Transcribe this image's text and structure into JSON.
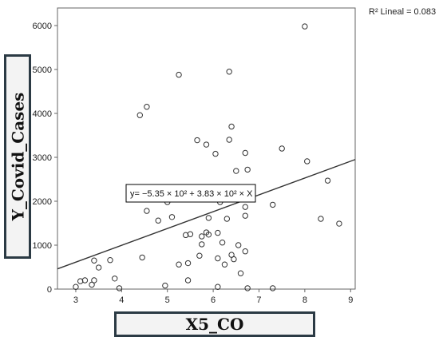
{
  "chart_data": {
    "type": "scatter",
    "xlabel": "X5_CO",
    "ylabel": "Y_Covid_Cases",
    "xlim": [
      2.6,
      9.1
    ],
    "ylim": [
      0,
      6400
    ],
    "xticks": [
      "3",
      "4",
      "5",
      "6",
      "7",
      "8",
      "9"
    ],
    "yticks": [
      "0",
      "1000",
      "2000",
      "3000",
      "4000",
      "5000",
      "6000"
    ],
    "grid": false,
    "r2_label": "R² Lineal = 0.083",
    "fit_equation": "y= −5.35 × 10² + 3.83 × 10² × X",
    "fit_line": {
      "intercept": -535,
      "slope": 383
    },
    "points": [
      {
        "x": 3.0,
        "y": 50
      },
      {
        "x": 3.1,
        "y": 180
      },
      {
        "x": 3.2,
        "y": 200
      },
      {
        "x": 3.35,
        "y": 100
      },
      {
        "x": 3.4,
        "y": 200
      },
      {
        "x": 3.4,
        "y": 650
      },
      {
        "x": 3.5,
        "y": 490
      },
      {
        "x": 3.75,
        "y": 660
      },
      {
        "x": 3.85,
        "y": 240
      },
      {
        "x": 3.95,
        "y": 20
      },
      {
        "x": 4.4,
        "y": 3960
      },
      {
        "x": 4.45,
        "y": 720
      },
      {
        "x": 4.55,
        "y": 4150
      },
      {
        "x": 4.55,
        "y": 1780
      },
      {
        "x": 4.8,
        "y": 1560
      },
      {
        "x": 4.95,
        "y": 80
      },
      {
        "x": 5.0,
        "y": 1980
      },
      {
        "x": 5.1,
        "y": 1640
      },
      {
        "x": 5.25,
        "y": 4880
      },
      {
        "x": 5.25,
        "y": 560
      },
      {
        "x": 5.4,
        "y": 1230
      },
      {
        "x": 5.45,
        "y": 590
      },
      {
        "x": 5.45,
        "y": 200
      },
      {
        "x": 5.5,
        "y": 1250
      },
      {
        "x": 5.65,
        "y": 3390
      },
      {
        "x": 5.7,
        "y": 760
      },
      {
        "x": 5.75,
        "y": 1200
      },
      {
        "x": 5.75,
        "y": 1020
      },
      {
        "x": 5.85,
        "y": 3290
      },
      {
        "x": 5.85,
        "y": 1290
      },
      {
        "x": 5.9,
        "y": 1620
      },
      {
        "x": 5.9,
        "y": 1240
      },
      {
        "x": 6.05,
        "y": 3080
      },
      {
        "x": 6.1,
        "y": 1280
      },
      {
        "x": 6.1,
        "y": 700
      },
      {
        "x": 6.1,
        "y": 50
      },
      {
        "x": 6.15,
        "y": 1980
      },
      {
        "x": 6.2,
        "y": 1060
      },
      {
        "x": 6.25,
        "y": 560
      },
      {
        "x": 6.3,
        "y": 1600
      },
      {
        "x": 6.35,
        "y": 4950
      },
      {
        "x": 6.35,
        "y": 3400
      },
      {
        "x": 6.4,
        "y": 3700
      },
      {
        "x": 6.4,
        "y": 780
      },
      {
        "x": 6.45,
        "y": 680
      },
      {
        "x": 6.5,
        "y": 2690
      },
      {
        "x": 6.55,
        "y": 1000
      },
      {
        "x": 6.6,
        "y": 360
      },
      {
        "x": 6.7,
        "y": 3100
      },
      {
        "x": 6.7,
        "y": 1870
      },
      {
        "x": 6.7,
        "y": 860
      },
      {
        "x": 6.7,
        "y": 1670
      },
      {
        "x": 6.75,
        "y": 2720
      },
      {
        "x": 6.75,
        "y": 20
      },
      {
        "x": 7.3,
        "y": 1920
      },
      {
        "x": 7.3,
        "y": 20
      },
      {
        "x": 7.5,
        "y": 3200
      },
      {
        "x": 8.0,
        "y": 5980
      },
      {
        "x": 8.05,
        "y": 2910
      },
      {
        "x": 8.35,
        "y": 1600
      },
      {
        "x": 8.5,
        "y": 2470
      },
      {
        "x": 8.75,
        "y": 1490
      }
    ]
  }
}
